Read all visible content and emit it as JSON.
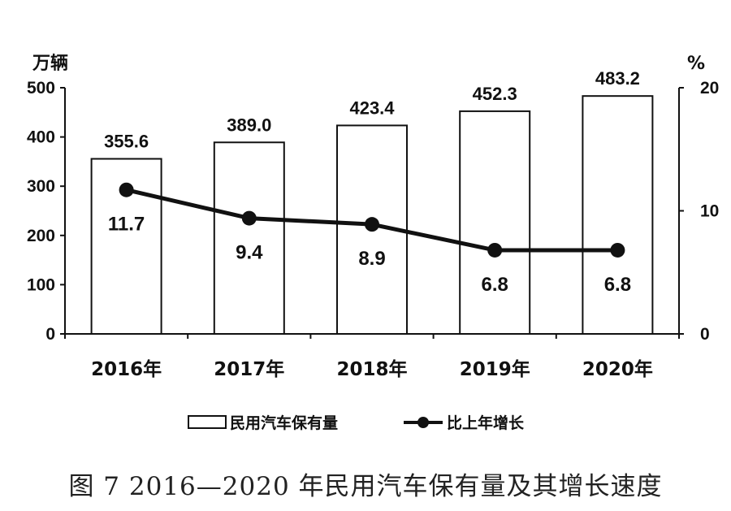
{
  "chart_data": {
    "type": "bar+line",
    "caption": "图 7 2016—2020 年民用汽车保有量及其增长速度",
    "categories": [
      "2016年",
      "2017年",
      "2018年",
      "2019年",
      "2020年"
    ],
    "left_axis": {
      "unit": "万辆",
      "range": [
        0,
        500
      ],
      "ticks": [
        "0",
        "100",
        "200",
        "300",
        "400",
        "500"
      ]
    },
    "right_axis": {
      "unit": "%",
      "range": [
        0,
        20
      ],
      "ticks": [
        "0",
        "10",
        "20"
      ]
    },
    "series": [
      {
        "name": "民用汽车保有量",
        "type": "bar",
        "axis": "left",
        "values": [
          355.6,
          389.0,
          423.4,
          452.3,
          483.2
        ],
        "labels": [
          "355.6",
          "389.0",
          "423.4",
          "452.3",
          "483.2"
        ]
      },
      {
        "name": "比上年增长",
        "type": "line",
        "axis": "right",
        "values": [
          11.7,
          9.4,
          8.9,
          6.8,
          6.8
        ],
        "labels": [
          "11.7",
          "9.4",
          "8.9",
          "6.8",
          "6.8"
        ]
      }
    ],
    "grid": false,
    "legend_position": "bottom"
  }
}
